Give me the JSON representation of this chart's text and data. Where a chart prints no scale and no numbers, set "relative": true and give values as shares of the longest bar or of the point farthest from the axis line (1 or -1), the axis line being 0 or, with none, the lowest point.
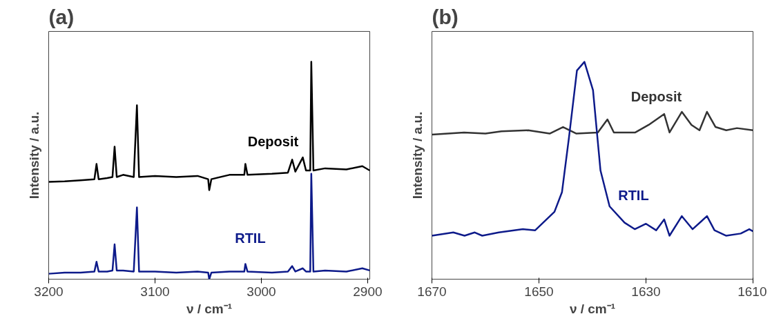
{
  "chart_data": [
    {
      "type": "line",
      "title": "(a)",
      "xlabel": "ν / cm⁻¹",
      "ylabel": "Intensity / a.u.",
      "relative": true,
      "xlim": [
        3200,
        2898
      ],
      "xticks": [
        3200,
        3100,
        3000,
        2900
      ],
      "grid": false,
      "tick_labels": "x",
      "series": [
        {
          "name": "Deposit",
          "color": "#000000",
          "x": [
            3200,
            3185,
            3170,
            3157,
            3155,
            3153,
            3145,
            3140,
            3138,
            3136,
            3130,
            3120,
            3117,
            3115,
            3100,
            3080,
            3060,
            3050,
            3049,
            3047,
            3030,
            3016,
            3015,
            3013,
            2990,
            2975,
            2971,
            2968,
            2961,
            2958,
            2954,
            2953,
            2951,
            2940,
            2920,
            2905,
            2898
          ],
          "values": [
            0.448,
            0.45,
            0.455,
            0.46,
            0.53,
            0.46,
            0.465,
            0.47,
            0.61,
            0.47,
            0.48,
            0.47,
            0.8,
            0.47,
            0.475,
            0.47,
            0.475,
            0.46,
            0.41,
            0.46,
            0.48,
            0.48,
            0.53,
            0.48,
            0.485,
            0.49,
            0.55,
            0.495,
            0.56,
            0.5,
            0.5,
            1.0,
            0.5,
            0.51,
            0.505,
            0.52,
            0.5
          ]
        },
        {
          "name": "RTIL",
          "color": "#0d1a8a",
          "x": [
            3200,
            3185,
            3170,
            3157,
            3155,
            3153,
            3145,
            3140,
            3138,
            3136,
            3130,
            3120,
            3117,
            3115,
            3100,
            3080,
            3060,
            3050,
            3049,
            3047,
            3030,
            3016,
            3015,
            3013,
            2990,
            2975,
            2971,
            2968,
            2961,
            2958,
            2954,
            2953,
            2951,
            2940,
            2920,
            2905,
            2898
          ],
          "values": [
            0.025,
            0.03,
            0.03,
            0.035,
            0.08,
            0.035,
            0.035,
            0.04,
            0.16,
            0.04,
            0.04,
            0.035,
            0.33,
            0.035,
            0.035,
            0.03,
            0.035,
            0.03,
            0.0,
            0.03,
            0.035,
            0.035,
            0.07,
            0.035,
            0.03,
            0.035,
            0.06,
            0.035,
            0.05,
            0.035,
            0.035,
            0.485,
            0.035,
            0.04,
            0.035,
            0.05,
            0.04
          ]
        }
      ]
    },
    {
      "type": "line",
      "title": "(b)",
      "xlabel": "ν / cm⁻¹",
      "ylabel": "Intensity / a.u.",
      "relative": true,
      "xlim": [
        1670,
        1610
      ],
      "xticks": [
        1670,
        1650,
        1630,
        1610
      ],
      "grid": false,
      "tick_labels": "x",
      "series": [
        {
          "name": "Deposit",
          "color": "#333333",
          "x": [
            1670,
            1667,
            1664,
            1660,
            1657,
            1652,
            1648,
            1645.5,
            1643,
            1639,
            1637.2,
            1636,
            1632,
            1629.5,
            1626.6,
            1625.6,
            1623.3,
            1621.5,
            1620,
            1618.6,
            1617,
            1615,
            1613,
            1610
          ],
          "values": [
            0.665,
            0.67,
            0.675,
            0.67,
            0.68,
            0.685,
            0.67,
            0.7,
            0.67,
            0.675,
            0.735,
            0.675,
            0.675,
            0.71,
            0.76,
            0.675,
            0.77,
            0.71,
            0.685,
            0.77,
            0.7,
            0.685,
            0.695,
            0.685
          ]
        },
        {
          "name": "RTIL",
          "color": "#0d1a8a",
          "x": [
            1670,
            1666,
            1663.9,
            1662,
            1660.6,
            1657.5,
            1653,
            1650.7,
            1647.1,
            1645.7,
            1644.4,
            1642.9,
            1641.5,
            1639.9,
            1638.5,
            1636.8,
            1634,
            1632.1,
            1630,
            1628.1,
            1626.6,
            1625.6,
            1623.3,
            1621.3,
            1618.6,
            1617.2,
            1615,
            1612.3,
            1610.7,
            1610
          ],
          "values": [
            0.2,
            0.215,
            0.2,
            0.215,
            0.2,
            0.215,
            0.23,
            0.225,
            0.31,
            0.4,
            0.65,
            0.96,
            1.0,
            0.87,
            0.5,
            0.335,
            0.26,
            0.23,
            0.255,
            0.225,
            0.275,
            0.2,
            0.29,
            0.23,
            0.29,
            0.225,
            0.2,
            0.21,
            0.23,
            0.22
          ]
        }
      ]
    }
  ]
}
